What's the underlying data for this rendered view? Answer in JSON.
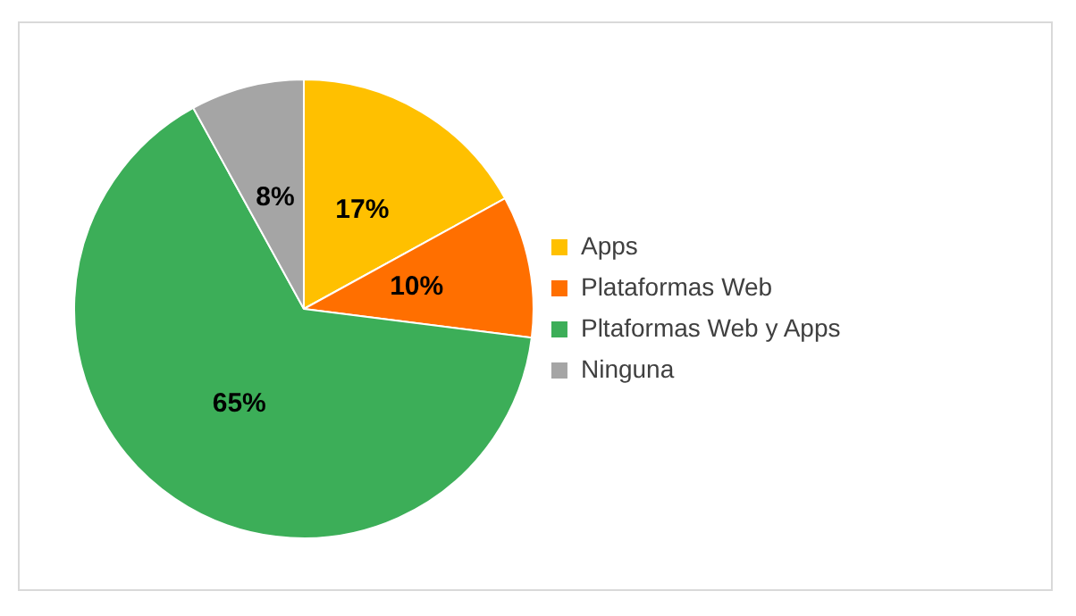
{
  "chart_data": {
    "type": "pie",
    "categories": [
      "Apps",
      "Plataformas Web",
      "Pltaformas Web y Apps",
      "Ninguna"
    ],
    "values": [
      17,
      10,
      65,
      8
    ],
    "colors": [
      "#ffc000",
      "#ff6f00",
      "#3cae58",
      "#a5a5a5"
    ],
    "value_labels": [
      "17%",
      "10%",
      "65%",
      "8%"
    ],
    "legend": "right"
  }
}
